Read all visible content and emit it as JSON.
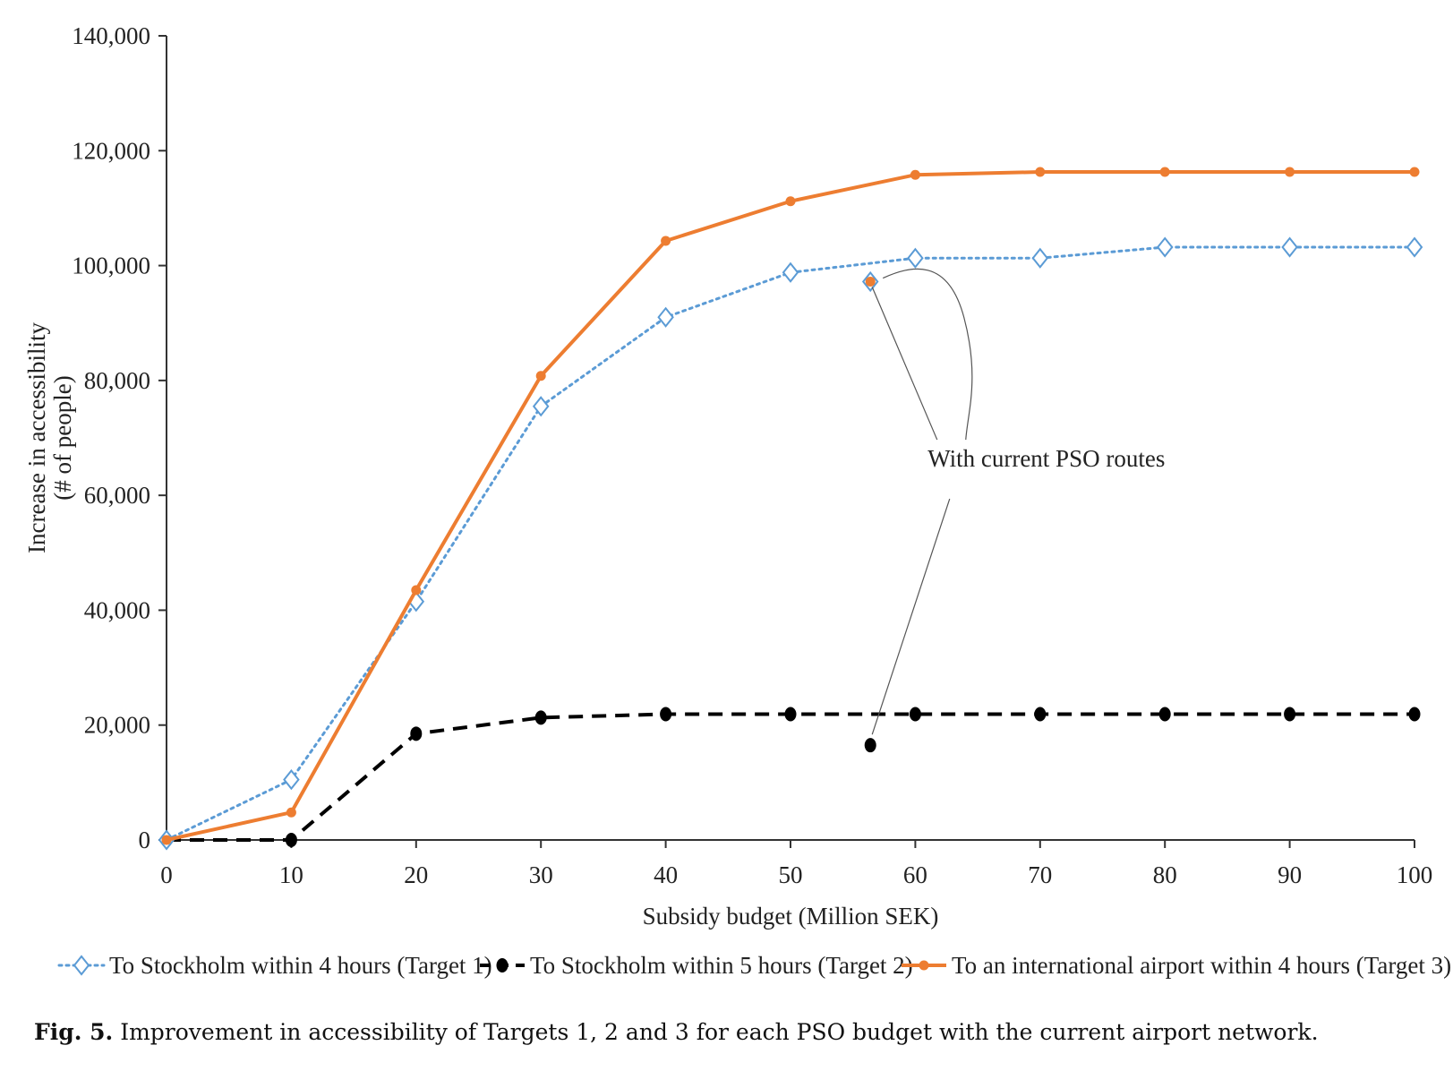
{
  "chart_data": {
    "type": "line",
    "xlabel": "Subsidy budget (Million SEK)",
    "ylabel": "Increase in accessibility",
    "ylabel2": "(# of people)",
    "xlim": [
      0,
      100
    ],
    "ylim": [
      0,
      140000
    ],
    "x_ticks": [
      0,
      10,
      20,
      30,
      40,
      50,
      60,
      70,
      80,
      90,
      100
    ],
    "x_tick_labels": [
      "0",
      "10",
      "20",
      "30",
      "40",
      "50",
      "60",
      "70",
      "80",
      "90",
      "100"
    ],
    "y_ticks": [
      0,
      20000,
      40000,
      60000,
      80000,
      100000,
      120000,
      140000
    ],
    "y_tick_labels": [
      "0",
      "20,000",
      "40,000",
      "60,000",
      "80,000",
      "100,000",
      "120,000",
      "140,000"
    ],
    "grid": false,
    "legend_position": "bottom",
    "series": [
      {
        "name": "To Stockholm within 4 hours (Target 1)",
        "color": "#5b9bd5",
        "line_style": "dotted",
        "marker": "diamond-open",
        "x": [
          0,
          10,
          20,
          30,
          40,
          50,
          60,
          70,
          80,
          90,
          100
        ],
        "y": [
          0,
          10500,
          41500,
          75500,
          91000,
          98800,
          101300,
          101300,
          103200,
          103200,
          103200
        ]
      },
      {
        "name": "To Stockholm within 5 hours (Target 2)",
        "color": "#000000",
        "line_style": "dashed",
        "marker": "circle-filled",
        "x": [
          0,
          10,
          20,
          30,
          40,
          50,
          60,
          70,
          80,
          90,
          100
        ],
        "y": [
          0,
          0,
          18500,
          21300,
          21900,
          21900,
          21900,
          21900,
          21900,
          21900,
          21900
        ]
      },
      {
        "name": "To an international airport within 4 hours (Target 3)",
        "color": "#ed7d31",
        "line_style": "solid",
        "marker": "circle-filled-small",
        "x": [
          0,
          10,
          20,
          30,
          40,
          50,
          60,
          70,
          80,
          90,
          100
        ],
        "y": [
          0,
          4800,
          43500,
          80800,
          104300,
          111200,
          115800,
          116300,
          116300,
          116300,
          116300
        ]
      }
    ],
    "current_pso_points": [
      {
        "series": "To Stockholm within 4 hours (Target 1)",
        "x": 56.4,
        "y": 97200,
        "color": "#5b9bd5",
        "marker": "diamond-open"
      },
      {
        "series": "To an international airport within 4 hours (Target 3)",
        "x": 56.4,
        "y": 97200,
        "color": "#ed7d31",
        "marker": "circle-filled-small"
      },
      {
        "series": "To Stockholm within 5 hours (Target 2)",
        "x": 56.4,
        "y": 16500,
        "color": "#000000",
        "marker": "circle-filled"
      }
    ],
    "annotation": {
      "text": "With current PSO routes",
      "x": 70.5,
      "y": 65000
    }
  },
  "caption": {
    "label": "Fig. 5.",
    "text": "Improvement in accessibility of Targets 1, 2 and 3 for each PSO budget with the current airport network."
  }
}
